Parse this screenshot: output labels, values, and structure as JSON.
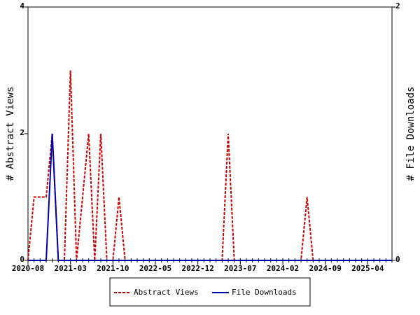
{
  "chart_data": {
    "type": "line",
    "y_label": "# Abstract Views",
    "y2_label": "# File Downloads",
    "x": [
      "2020-08",
      "2020-09",
      "2020-10",
      "2020-11",
      "2020-12",
      "2021-01",
      "2021-02",
      "2021-03",
      "2021-04",
      "2021-05",
      "2021-06",
      "2021-07",
      "2021-08",
      "2021-09",
      "2021-10",
      "2021-11",
      "2021-12",
      "2022-01",
      "2022-02",
      "2022-03",
      "2022-04",
      "2022-05",
      "2022-06",
      "2022-07",
      "2022-08",
      "2022-09",
      "2022-10",
      "2022-11",
      "2022-12",
      "2023-01",
      "2023-02",
      "2023-03",
      "2023-04",
      "2023-05",
      "2023-06",
      "2023-07",
      "2023-08",
      "2023-09",
      "2023-10",
      "2023-11",
      "2023-12",
      "2024-01",
      "2024-02",
      "2024-03",
      "2024-04",
      "2024-05",
      "2024-06",
      "2024-07",
      "2024-08",
      "2024-09",
      "2024-10",
      "2024-11",
      "2024-12",
      "2025-01",
      "2025-02",
      "2025-03",
      "2025-04",
      "2025-05",
      "2025-06",
      "2025-07",
      "2025-08"
    ],
    "xticks": [
      "2020-08",
      "2021-03",
      "2021-10",
      "2022-05",
      "2022-12",
      "2023-07",
      "2024-02",
      "2024-09",
      "2025-04"
    ],
    "series": [
      {
        "name": "Abstract Views",
        "color": "#cc0000",
        "line_style": "dashed",
        "axis": "y",
        "values": [
          0,
          1,
          1,
          1,
          2,
          0,
          0,
          3,
          0,
          1,
          2,
          0,
          2,
          0,
          0,
          1,
          0,
          0,
          0,
          0,
          0,
          0,
          0,
          0,
          0,
          0,
          0,
          0,
          0,
          0,
          0,
          0,
          0,
          2,
          0,
          0,
          0,
          0,
          0,
          0,
          0,
          0,
          0,
          0,
          0,
          0,
          1,
          0,
          0,
          0,
          0,
          0,
          0,
          0,
          0,
          0,
          0,
          0,
          0,
          0,
          0
        ]
      },
      {
        "name": "File Downloads",
        "color": "#0000aa",
        "line_style": "solid",
        "axis": "y2",
        "values": [
          0,
          0,
          0,
          0,
          1,
          0,
          0,
          0,
          0,
          0,
          0,
          0,
          0,
          0,
          0,
          0,
          0,
          0,
          0,
          0,
          0,
          0,
          0,
          0,
          0,
          0,
          0,
          0,
          0,
          0,
          0,
          0,
          0,
          0,
          0,
          0,
          0,
          0,
          0,
          0,
          0,
          0,
          0,
          0,
          0,
          0,
          0,
          0,
          0,
          0,
          0,
          0,
          0,
          0,
          0,
          0,
          0,
          0,
          0,
          0,
          0
        ]
      }
    ],
    "ylim": [
      0,
      4
    ],
    "yticks": [
      0,
      2,
      4
    ],
    "y2lim": [
      0,
      2
    ],
    "y2ticks": [
      0,
      2
    ],
    "legend": "bottom"
  }
}
